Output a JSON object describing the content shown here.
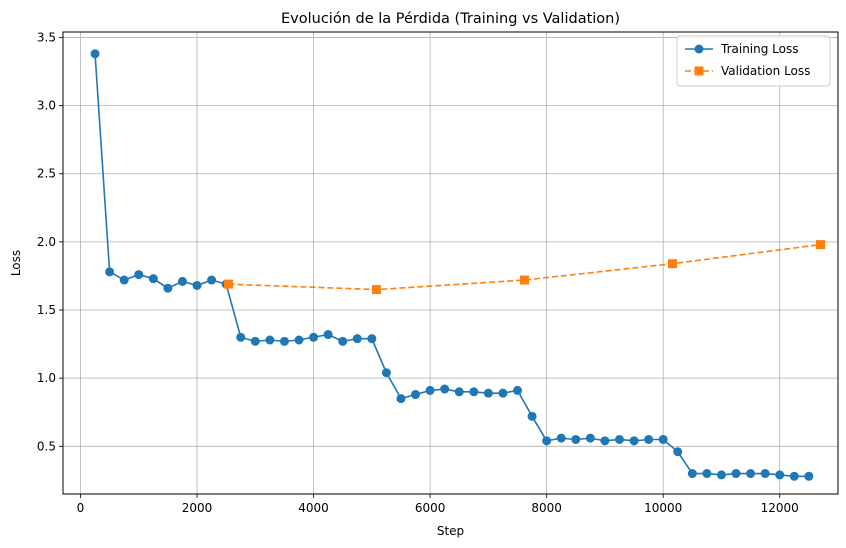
{
  "chart_data": {
    "type": "line",
    "title": "Evolución de la Pérdida (Training vs Validation)",
    "xlabel": "Step",
    "ylabel": "Loss",
    "xlim": [
      -300,
      13000
    ],
    "ylim": [
      0.15,
      3.54
    ],
    "xticks": [
      0,
      2000,
      4000,
      6000,
      8000,
      10000,
      12000
    ],
    "yticks": [
      0.5,
      1.0,
      1.5,
      2.0,
      2.5,
      3.0,
      3.5
    ],
    "xtick_labels": [
      "0",
      "2000",
      "4000",
      "6000",
      "8000",
      "10000",
      "12000"
    ],
    "ytick_labels": [
      "0.5",
      "1.0",
      "1.5",
      "2.0",
      "2.5",
      "3.0",
      "3.5"
    ],
    "grid": true,
    "legend_position": "top-right",
    "series": [
      {
        "name": "Training Loss",
        "color": "#1f77b4",
        "marker": "circle",
        "linestyle": "solid",
        "x": [
          250,
          500,
          750,
          1000,
          1250,
          1500,
          1750,
          2000,
          2250,
          2500,
          2750,
          3000,
          3250,
          3500,
          3750,
          4000,
          4250,
          4500,
          4750,
          5000,
          5250,
          5500,
          5750,
          6000,
          6250,
          6500,
          6750,
          7000,
          7250,
          7500,
          7750,
          8000,
          8250,
          8500,
          8750,
          9000,
          9250,
          9500,
          9750,
          10000,
          10250,
          10500,
          10750,
          11000,
          11250,
          11500,
          11750,
          12000,
          12250,
          12500
        ],
        "y": [
          3.38,
          1.78,
          1.72,
          1.76,
          1.73,
          1.66,
          1.71,
          1.68,
          1.72,
          1.69,
          1.3,
          1.27,
          1.28,
          1.27,
          1.28,
          1.3,
          1.32,
          1.27,
          1.29,
          1.29,
          1.04,
          0.85,
          0.88,
          0.91,
          0.92,
          0.9,
          0.9,
          0.89,
          0.89,
          0.91,
          0.72,
          0.54,
          0.56,
          0.55,
          0.56,
          0.54,
          0.55,
          0.54,
          0.55,
          0.55,
          0.46,
          0.3,
          0.3,
          0.29,
          0.3,
          0.3,
          0.3,
          0.29,
          0.28,
          0.28
        ]
      },
      {
        "name": "Validation Loss",
        "color": "#ff7f0e",
        "marker": "square",
        "linestyle": "dashed",
        "x": [
          2540,
          5080,
          7620,
          10160,
          12700
        ],
        "y": [
          1.69,
          1.65,
          1.72,
          1.84,
          1.98
        ]
      }
    ]
  }
}
